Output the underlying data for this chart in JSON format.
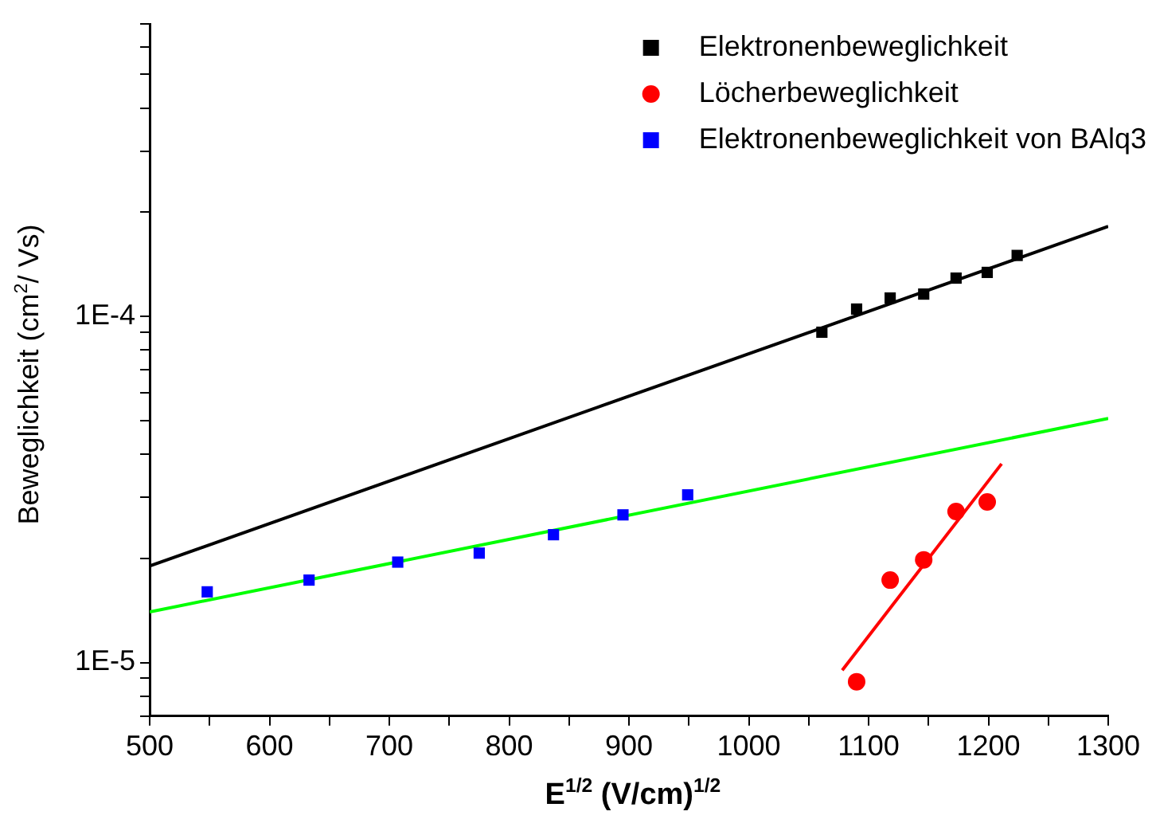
{
  "chart_data": {
    "type": "scatter",
    "xlabel": "E$^{1/2}$ (V/cm)$^{1/2}$",
    "ylabel": "Beweglichkeit (cm$^{2}$/ Vs)",
    "log": "y",
    "xlim": [
      500,
      1300
    ],
    "ylim": [
      7e-06,
      0.0007
    ],
    "xticks": [
      500,
      {
        "value": 550,
        "label": null
      },
      600,
      {
        "value": 650,
        "label": null
      },
      700,
      {
        "value": 750,
        "label": null
      },
      800,
      {
        "value": 850,
        "label": null
      },
      900,
      {
        "value": 950,
        "label": null
      },
      1000,
      {
        "value": 1050,
        "label": null
      },
      1100,
      {
        "value": 1150,
        "label": null
      },
      1200,
      {
        "value": 1250,
        "label": null
      },
      1300
    ],
    "yticks": [
      {
        "value": 7e-06,
        "label": null
      },
      {
        "value": 8e-06,
        "label": null
      },
      {
        "value": 9e-06,
        "label": null
      },
      {
        "value": 1e-05,
        "label": "1E-5"
      },
      {
        "value": 2e-05,
        "label": null
      },
      {
        "value": 3e-05,
        "label": null
      },
      {
        "value": 4e-05,
        "label": null
      },
      {
        "value": 5e-05,
        "label": null
      },
      {
        "value": 6e-05,
        "label": null
      },
      {
        "value": 7e-05,
        "label": null
      },
      {
        "value": 8e-05,
        "label": null
      },
      {
        "value": 9e-05,
        "label": null
      },
      {
        "value": 0.0001,
        "label": "1E-4"
      },
      {
        "value": 0.0002,
        "label": null
      },
      {
        "value": 0.0003,
        "label": null
      },
      {
        "value": 0.0004,
        "label": null
      },
      {
        "value": 0.0005,
        "label": null
      },
      {
        "value": 0.0006,
        "label": null
      },
      {
        "value": 0.0007,
        "label": null
      }
    ],
    "grid": false,
    "legend": "top right",
    "series": [
      {
        "name": "Elektronenbeweglichkeit",
        "marker": "square",
        "color": "#000000",
        "x": [
          1061,
          1090,
          1118,
          1146,
          1173,
          1199,
          1224
        ],
        "values": [
          9e-05,
          0.000105,
          0.000113,
          0.000116,
          0.000129,
          0.000134,
          0.00015
        ]
      },
      {
        "name": "Löcherbeweglichkeit",
        "marker": "circle",
        "color": "#ff0000",
        "x": [
          1090,
          1118,
          1146,
          1173,
          1199
        ],
        "values": [
          8.8e-06,
          1.73e-05,
          1.98e-05,
          2.73e-05,
          2.91e-05
        ]
      },
      {
        "name": "Elektronenbeweglichkeit von BAlq3",
        "marker": "square",
        "color": "#0000ff",
        "x": [
          548,
          633,
          707,
          775,
          837,
          895,
          949
        ],
        "values": [
          1.6e-05,
          1.73e-05,
          1.95e-05,
          2.07e-05,
          2.34e-05,
          2.67e-05,
          3.05e-05
        ]
      },
      {
        "type": "line",
        "marker": "none",
        "color": "#000000",
        "x": [
          500,
          1300
        ],
        "values": [
          1.9e-05,
          0.000182
        ]
      },
      {
        "type": "line",
        "marker": "none",
        "color": "#00ff00",
        "x": [
          500,
          1300
        ],
        "values": [
          1.4e-05,
          5.07e-05
        ]
      },
      {
        "type": "line",
        "marker": "none",
        "color": "#ff0000",
        "x": [
          1078,
          1211
        ],
        "values": [
          9.5e-06,
          3.75e-05
        ]
      }
    ]
  }
}
